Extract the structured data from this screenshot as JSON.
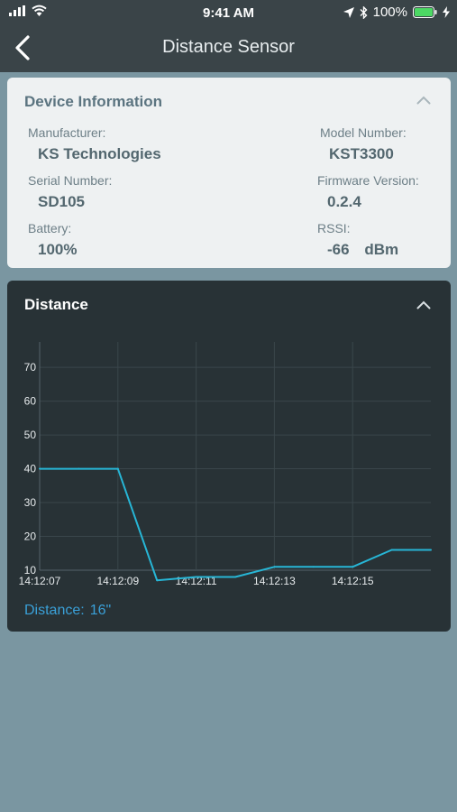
{
  "status_bar": {
    "time": "9:41 AM",
    "battery_percent": "100%",
    "icons": [
      "signal-icon",
      "wifi-icon",
      "location-icon",
      "bluetooth-icon",
      "battery-icon",
      "charging-icon"
    ]
  },
  "nav": {
    "title": "Distance Sensor",
    "back_icon": "chevron-left-icon"
  },
  "device_info": {
    "header": "Device Information",
    "manufacturer_label": "Manufacturer:",
    "manufacturer_value": "KS Technologies",
    "model_label": "Model Number:",
    "model_value": "KST3300",
    "serial_label": "Serial Number:",
    "serial_value": "SD105",
    "firmware_label": "Firmware Version:",
    "firmware_value": "0.2.4",
    "battery_label": "Battery:",
    "battery_value": "100%",
    "rssi_label": "RSSI:",
    "rssi_value": "-66",
    "rssi_unit": "dBm"
  },
  "distance_card": {
    "header": "Distance",
    "readout_label": "Distance:",
    "readout_value": "16\""
  },
  "colors": {
    "topbar": "#3a4448",
    "background": "#7a96a1",
    "line": "#27b6d6",
    "readout": "#3aa0d8"
  },
  "chart_data": {
    "type": "line",
    "title": "",
    "xlabel": "",
    "ylabel": "",
    "ylim": [
      10,
      70
    ],
    "yticks": [
      10,
      20,
      30,
      40,
      50,
      60,
      70
    ],
    "xlim": [
      "14:12:07",
      "14:12:17"
    ],
    "xticks": [
      "14:12:07",
      "14:12:09",
      "14:12:11",
      "14:12:13",
      "14:12:15"
    ],
    "grid": true,
    "series": [
      {
        "name": "",
        "x": [
          "14:12:07",
          "14:12:08",
          "14:12:09",
          "14:12:10",
          "14:12:11",
          "14:12:12",
          "14:12:13",
          "14:12:14",
          "14:12:15",
          "14:12:16",
          "14:12:17"
        ],
        "values": [
          40,
          40,
          40,
          7,
          8,
          8,
          11,
          11,
          11,
          16,
          16
        ]
      }
    ]
  }
}
